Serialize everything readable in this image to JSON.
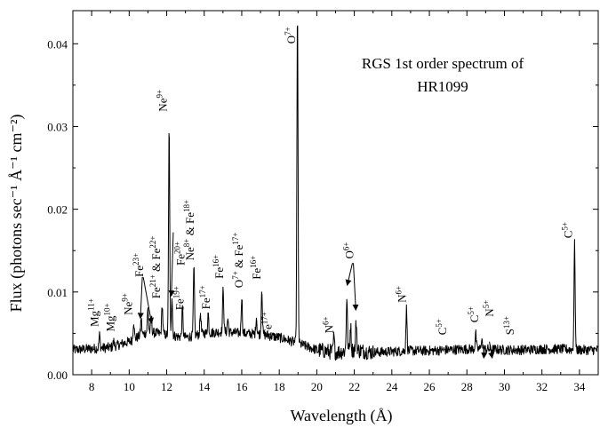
{
  "chart_data": {
    "type": "line",
    "title": "RGS 1st order spectrum of HR1099",
    "xlabel": "Wavelength (Å)",
    "ylabel": "Flux (photons sec⁻¹ Å⁻¹ cm⁻²)",
    "xlim": [
      7,
      35
    ],
    "ylim": [
      0,
      0.044
    ],
    "xticks": [
      8,
      10,
      12,
      14,
      16,
      18,
      20,
      22,
      24,
      26,
      28,
      30,
      32,
      34
    ],
    "yticks": [
      0.0,
      0.01,
      0.02,
      0.03,
      0.04
    ],
    "ytick_labels": [
      "0.00",
      "0.01",
      "0.02",
      "0.03",
      "0.04"
    ],
    "grid": false,
    "legend": "none",
    "line_color": "#000000",
    "baseline": [
      [
        7.0,
        0.003
      ],
      [
        9.0,
        0.0033
      ],
      [
        10.0,
        0.004
      ],
      [
        11.0,
        0.0052
      ],
      [
        12.0,
        0.0048
      ],
      [
        13.0,
        0.0045
      ],
      [
        14.0,
        0.005
      ],
      [
        15.0,
        0.0052
      ],
      [
        16.0,
        0.005
      ],
      [
        17.0,
        0.0049
      ],
      [
        18.0,
        0.0045
      ],
      [
        19.0,
        0.0038
      ],
      [
        20.0,
        0.003
      ],
      [
        21.0,
        0.0027
      ],
      [
        22.0,
        0.003
      ],
      [
        23.0,
        0.0027
      ],
      [
        24.0,
        0.0028
      ],
      [
        25.0,
        0.0029
      ],
      [
        26.0,
        0.0029
      ],
      [
        27.0,
        0.003
      ],
      [
        28.0,
        0.0031
      ],
      [
        29.0,
        0.0031
      ],
      [
        30.0,
        0.003
      ],
      [
        31.0,
        0.003
      ],
      [
        32.0,
        0.0031
      ],
      [
        33.0,
        0.0031
      ],
      [
        34.0,
        0.003
      ],
      [
        35.0,
        0.003
      ]
    ],
    "lines": [
      {
        "x": 8.42,
        "peak": 0.0048
      },
      {
        "x": 9.17,
        "peak": 0.004
      },
      {
        "x": 10.24,
        "peak": 0.0065
      },
      {
        "x": 10.64,
        "peak": 0.0068
      },
      {
        "x": 11.0,
        "peak": 0.008
      },
      {
        "x": 11.18,
        "peak": 0.007
      },
      {
        "x": 11.76,
        "peak": 0.0085
      },
      {
        "x": 12.13,
        "peak": 0.0303
      },
      {
        "x": 12.28,
        "peak": 0.0095
      },
      {
        "x": 12.84,
        "peak": 0.008
      },
      {
        "x": 13.45,
        "peak": 0.013
      },
      {
        "x": 13.8,
        "peak": 0.0075
      },
      {
        "x": 14.21,
        "peak": 0.0075
      },
      {
        "x": 15.01,
        "peak": 0.0105
      },
      {
        "x": 15.26,
        "peak": 0.0068
      },
      {
        "x": 16.0,
        "peak": 0.0095
      },
      {
        "x": 16.78,
        "peak": 0.007
      },
      {
        "x": 17.07,
        "peak": 0.0105
      },
      {
        "x": 18.97,
        "peak": 0.044
      },
      {
        "x": 20.91,
        "peak": 0.0045
      },
      {
        "x": 21.6,
        "peak": 0.0095
      },
      {
        "x": 21.8,
        "peak": 0.006
      },
      {
        "x": 22.1,
        "peak": 0.0065
      },
      {
        "x": 24.78,
        "peak": 0.008
      },
      {
        "x": 28.47,
        "peak": 0.005
      },
      {
        "x": 28.79,
        "peak": 0.0045
      },
      {
        "x": 33.74,
        "peak": 0.0158
      }
    ],
    "annotations": [
      {
        "parts": [
          [
            "Mg",
            ""
          ],
          [
            "11+",
            "sup"
          ]
        ],
        "x": 8.35,
        "y": 0.0058,
        "rotate": -90
      },
      {
        "parts": [
          [
            "Mg",
            ""
          ],
          [
            "10+",
            "sup"
          ]
        ],
        "x": 9.2,
        "y": 0.0052,
        "rotate": -90
      },
      {
        "parts": [
          [
            "Ne",
            ""
          ],
          [
            "9+",
            "sup"
          ]
        ],
        "x": 10.15,
        "y": 0.0072,
        "rotate": -90
      },
      {
        "parts": [
          [
            "Fe",
            ""
          ],
          [
            "23+",
            "sup"
          ]
        ],
        "x": 10.75,
        "y": 0.0118,
        "rotate": -90
      },
      {
        "parts": [
          [
            "Fe",
            ""
          ],
          [
            "21+",
            "sup"
          ],
          [
            " & Fe",
            ""
          ],
          [
            "22+",
            "sup"
          ]
        ],
        "x": 11.65,
        "y": 0.0092,
        "rotate": -90
      },
      {
        "parts": [
          [
            "Ne",
            ""
          ],
          [
            "9+",
            "sup"
          ]
        ],
        "x": 12.0,
        "y": 0.0318,
        "rotate": -90
      },
      {
        "parts": [
          [
            "Fe",
            ""
          ],
          [
            "19+",
            "sup"
          ]
        ],
        "x": 12.9,
        "y": 0.0078,
        "rotate": -90
      },
      {
        "parts": [
          [
            "Fe",
            ""
          ],
          [
            "20+",
            "sup"
          ]
        ],
        "x": 12.95,
        "y": 0.0132,
        "rotate": -90
      },
      {
        "parts": [
          [
            "Ne",
            ""
          ],
          [
            "8+",
            "sup"
          ],
          [
            " & Fe",
            ""
          ],
          [
            "18+",
            "sup"
          ]
        ],
        "x": 13.45,
        "y": 0.0138,
        "rotate": -90
      },
      {
        "parts": [
          [
            "Fe",
            ""
          ],
          [
            "17+",
            "sup"
          ]
        ],
        "x": 14.3,
        "y": 0.0079,
        "rotate": -90
      },
      {
        "parts": [
          [
            "Fe",
            ""
          ],
          [
            "16+",
            "sup"
          ]
        ],
        "x": 15.0,
        "y": 0.0116,
        "rotate": -90
      },
      {
        "parts": [
          [
            "O",
            ""
          ],
          [
            "7+",
            "sup"
          ],
          [
            " & Fe",
            ""
          ],
          [
            "17+",
            "sup"
          ]
        ],
        "x": 16.05,
        "y": 0.0105,
        "rotate": -90
      },
      {
        "parts": [
          [
            "Fe",
            ""
          ],
          [
            "16+",
            "sup"
          ]
        ],
        "x": 17.0,
        "y": 0.0115,
        "rotate": -90
      },
      {
        "parts": [
          [
            "Fe",
            ""
          ],
          [
            "17+",
            "sup"
          ]
        ],
        "x": 17.6,
        "y": 0.0047,
        "rotate": -90
      },
      {
        "parts": [
          [
            "O",
            ""
          ],
          [
            "7+",
            "sup"
          ]
        ],
        "x": 18.85,
        "y": 0.04,
        "rotate": -90
      },
      {
        "parts": [
          [
            "N",
            ""
          ],
          [
            "6+",
            "sup"
          ]
        ],
        "x": 20.85,
        "y": 0.005,
        "rotate": -90
      },
      {
        "parts": [
          [
            "O",
            ""
          ],
          [
            "6+",
            "sup"
          ]
        ],
        "x": 21.95,
        "y": 0.014,
        "rotate": -90
      },
      {
        "parts": [
          [
            "N",
            ""
          ],
          [
            "6+",
            "sup"
          ]
        ],
        "x": 24.75,
        "y": 0.0087,
        "rotate": -90
      },
      {
        "parts": [
          [
            "C",
            ""
          ],
          [
            "5+",
            "sup"
          ]
        ],
        "x": 26.9,
        "y": 0.0048,
        "rotate": -90
      },
      {
        "parts": [
          [
            "C",
            ""
          ],
          [
            "5+",
            "sup"
          ]
        ],
        "x": 28.6,
        "y": 0.0063,
        "rotate": -90
      },
      {
        "parts": [
          [
            "N",
            ""
          ],
          [
            "5+",
            "sup"
          ]
        ],
        "x": 29.4,
        "y": 0.007,
        "rotate": -90
      },
      {
        "parts": [
          [
            "S",
            ""
          ],
          [
            "13+",
            "sup"
          ]
        ],
        "x": 30.5,
        "y": 0.0048,
        "rotate": -90
      },
      {
        "parts": [
          [
            "C",
            ""
          ],
          [
            "5+",
            "sup"
          ]
        ],
        "x": 33.6,
        "y": 0.0165,
        "rotate": -90
      }
    ],
    "arrows": [
      {
        "from": [
          10.7,
          0.0118
        ],
        "to": [
          10.6,
          0.0068
        ]
      },
      {
        "from": [
          10.75,
          0.0118
        ],
        "to": [
          11.2,
          0.0062
        ]
      },
      {
        "from": [
          12.35,
          0.0172
        ],
        "to": [
          12.25,
          0.0095
        ]
      },
      {
        "from": [
          21.9,
          0.0135
        ],
        "to": [
          21.62,
          0.0108
        ]
      },
      {
        "from": [
          21.95,
          0.0135
        ],
        "to": [
          22.08,
          0.0078
        ]
      },
      {
        "from": [
          28.95,
          0.0035
        ],
        "to": [
          28.9,
          0.002
        ]
      },
      {
        "from": [
          29.2,
          0.004
        ],
        "to": [
          29.35,
          0.002
        ]
      }
    ]
  }
}
